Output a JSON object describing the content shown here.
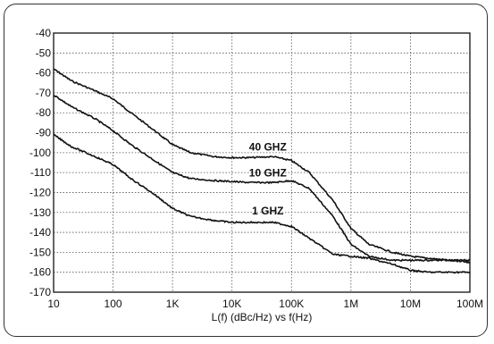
{
  "chart_data": {
    "type": "line",
    "title": "",
    "xlabel": "L(f) (dBc/Hz) vs f(Hz)",
    "ylabel": "",
    "x_scale": "log",
    "xlim": [
      10,
      100000000
    ],
    "ylim": [
      -170,
      -40
    ],
    "grid": true,
    "x_ticks": [
      {
        "value": 10,
        "label": "10"
      },
      {
        "value": 100,
        "label": "100"
      },
      {
        "value": 1000,
        "label": "1K"
      },
      {
        "value": 10000,
        "label": "10K"
      },
      {
        "value": 100000,
        "label": "100K"
      },
      {
        "value": 1000000,
        "label": "1M"
      },
      {
        "value": 10000000,
        "label": "10M"
      },
      {
        "value": 100000000,
        "label": "100M"
      }
    ],
    "y_ticks": [
      {
        "value": -40,
        "label": "-40"
      },
      {
        "value": -50,
        "label": "-50"
      },
      {
        "value": -60,
        "label": "-60"
      },
      {
        "value": -70,
        "label": "-70"
      },
      {
        "value": -80,
        "label": "-80"
      },
      {
        "value": -90,
        "label": "-90"
      },
      {
        "value": -100,
        "label": "-100"
      },
      {
        "value": -110,
        "label": "-110"
      },
      {
        "value": -120,
        "label": "-120"
      },
      {
        "value": -130,
        "label": "-130"
      },
      {
        "value": -140,
        "label": "-140"
      },
      {
        "value": -150,
        "label": "-150"
      },
      {
        "value": -160,
        "label": "-160"
      },
      {
        "value": -170,
        "label": "-170"
      }
    ],
    "series": [
      {
        "name": "40 GHZ",
        "x": [
          10,
          20,
          50,
          100,
          200,
          500,
          1000,
          2000,
          5000,
          10000,
          20000,
          50000,
          100000,
          200000,
          500000,
          1000000,
          2000000,
          5000000,
          10000000,
          20000000,
          50000000,
          100000000
        ],
        "y": [
          -58,
          -64,
          -69,
          -73,
          -80,
          -89,
          -96,
          -100,
          -102,
          -102.5,
          -102.5,
          -102,
          -104,
          -110,
          -124,
          -138,
          -146,
          -150,
          -152,
          -153,
          -154,
          -154
        ]
      },
      {
        "name": "10 GHZ",
        "x": [
          10,
          20,
          50,
          100,
          200,
          500,
          1000,
          2000,
          5000,
          10000,
          20000,
          50000,
          100000,
          200000,
          500000,
          1000000,
          2000000,
          5000000,
          10000000,
          20000000,
          50000000,
          100000000
        ],
        "y": [
          -71,
          -77,
          -83,
          -89,
          -96,
          -104,
          -110,
          -113,
          -114,
          -114.5,
          -115,
          -115,
          -114,
          -118,
          -132,
          -146,
          -152,
          -154,
          -154,
          -154,
          -154,
          -155
        ]
      },
      {
        "name": "1 GHZ",
        "x": [
          10,
          20,
          50,
          100,
          200,
          500,
          1000,
          2000,
          5000,
          10000,
          20000,
          50000,
          100000,
          200000,
          500000,
          1000000,
          2000000,
          5000000,
          10000000,
          20000000,
          50000000,
          100000000
        ],
        "y": [
          -91,
          -97,
          -102,
          -106,
          -113,
          -121,
          -128,
          -132,
          -134,
          -135,
          -135,
          -135,
          -137,
          -143,
          -151,
          -152,
          -153,
          -156,
          -159,
          -160,
          -160,
          -160
        ]
      }
    ],
    "annotations": [
      {
        "text": "40 GHZ",
        "x": 40000,
        "y": -99
      },
      {
        "text": "10 GHZ",
        "x": 40000,
        "y": -112
      },
      {
        "text": "1 GHZ",
        "x": 40000,
        "y": -131
      }
    ]
  }
}
